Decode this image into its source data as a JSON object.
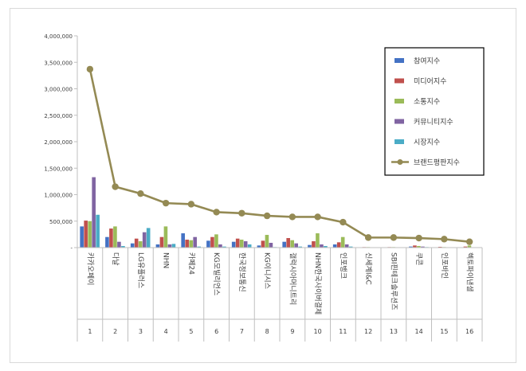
{
  "chart_data": {
    "type": "bar",
    "title": "",
    "xlabel": "",
    "ylabel": "",
    "ylim": [
      0,
      4000000
    ],
    "yticks": [
      0,
      500000,
      1000000,
      1500000,
      2000000,
      2500000,
      3000000,
      3500000,
      4000000
    ],
    "ytick_labels": [
      "-",
      "500,000",
      "1,000,000",
      "1,500,000",
      "2,000,000",
      "2,500,000",
      "3,000,000",
      "3,500,000",
      "4,000,000"
    ],
    "grid": false,
    "legend_position": "top-right",
    "rank_labels": [
      "1",
      "2",
      "3",
      "4",
      "5",
      "6",
      "7",
      "8",
      "9",
      "10",
      "11",
      "12",
      "13",
      "14",
      "15",
      "16"
    ],
    "categories": [
      "카카오페이",
      "다날",
      "LG유플러스",
      "NHN",
      "카페24",
      "KG모빌리언스",
      "한국정보통신",
      "KG이니시스",
      "갤럭시아머니트리",
      "NHN한국사이버결제",
      "인포뱅크",
      "신세계I&C",
      "SBI핀테크솔루션즈",
      "쿠콘",
      "인포바인",
      "헥토파이낸셜"
    ],
    "series": [
      {
        "name": "참여지수",
        "color": "#4472c4",
        "kind": "bar",
        "values": [
          400000,
          200000,
          80000,
          60000,
          270000,
          130000,
          110000,
          40000,
          110000,
          50000,
          60000,
          5000,
          5000,
          20000,
          5000,
          5000
        ]
      },
      {
        "name": "미디어지수",
        "color": "#c0504d",
        "kind": "bar",
        "values": [
          510000,
          360000,
          170000,
          200000,
          150000,
          200000,
          170000,
          130000,
          180000,
          120000,
          100000,
          10000,
          10000,
          40000,
          15000,
          20000
        ]
      },
      {
        "name": "소통지수",
        "color": "#9bbb59",
        "kind": "bar",
        "values": [
          500000,
          400000,
          120000,
          400000,
          140000,
          250000,
          150000,
          240000,
          140000,
          270000,
          200000,
          10000,
          10000,
          30000,
          10000,
          40000
        ]
      },
      {
        "name": "커뮤니티지수",
        "color": "#8064a2",
        "kind": "bar",
        "values": [
          1330000,
          110000,
          290000,
          60000,
          200000,
          60000,
          120000,
          90000,
          80000,
          60000,
          60000,
          5000,
          5000,
          20000,
          5000,
          5000
        ]
      },
      {
        "name": "시장지수",
        "color": "#4bacc6",
        "kind": "bar",
        "values": [
          620000,
          30000,
          370000,
          70000,
          20000,
          20000,
          60000,
          10000,
          20000,
          30000,
          20000,
          5000,
          5000,
          10000,
          5000,
          5000
        ]
      },
      {
        "name": "브랜드평판지수",
        "color": "#948a54",
        "kind": "line",
        "values": [
          3370000,
          1150000,
          1020000,
          840000,
          820000,
          670000,
          650000,
          600000,
          580000,
          580000,
          480000,
          190000,
          190000,
          180000,
          160000,
          110000
        ]
      }
    ]
  }
}
